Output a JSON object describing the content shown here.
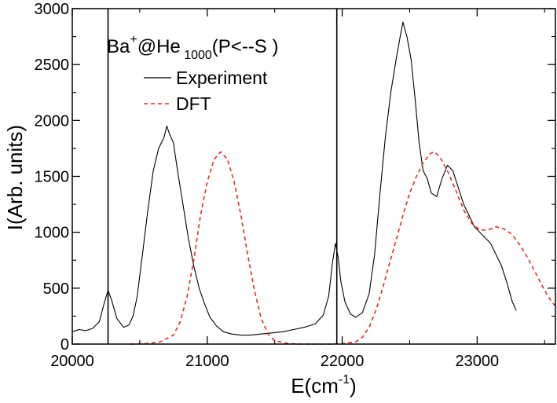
{
  "chart_data": {
    "type": "line",
    "title": "",
    "xlabel_base": "E(cm",
    "xlabel_sup": "-1",
    "xlabel_end": ")",
    "ylabel": "I(Arb. units)",
    "xlim": [
      20000,
      23580
    ],
    "ylim": [
      0,
      3000
    ],
    "x_ticks": [
      20000,
      21000,
      22000,
      23000
    ],
    "y_ticks": [
      0,
      500,
      1000,
      1500,
      2000,
      2500,
      3000
    ],
    "legend": {
      "placement": "top-left",
      "title_parts": {
        "base1": "Ba",
        "sup1": "+",
        "mid": "@He",
        "sub": " 1000",
        "end": "(P<--S )"
      },
      "entries": [
        "Experiment",
        "DFT"
      ]
    },
    "vertical_lines": [
      20265,
      21960
    ],
    "series": [
      {
        "name": "Experiment",
        "color": "#000000",
        "style": "solid",
        "points": [
          [
            20000,
            110
          ],
          [
            20050,
            130
          ],
          [
            20100,
            120
          ],
          [
            20150,
            140
          ],
          [
            20200,
            200
          ],
          [
            20240,
            380
          ],
          [
            20265,
            480
          ],
          [
            20290,
            400
          ],
          [
            20330,
            230
          ],
          [
            20380,
            150
          ],
          [
            20420,
            170
          ],
          [
            20450,
            250
          ],
          [
            20480,
            420
          ],
          [
            20520,
            800
          ],
          [
            20560,
            1200
          ],
          [
            20600,
            1550
          ],
          [
            20640,
            1750
          ],
          [
            20680,
            1850
          ],
          [
            20700,
            1950
          ],
          [
            20720,
            1880
          ],
          [
            20750,
            1800
          ],
          [
            20780,
            1550
          ],
          [
            20820,
            1250
          ],
          [
            20860,
            950
          ],
          [
            20900,
            700
          ],
          [
            20940,
            500
          ],
          [
            20980,
            360
          ],
          [
            21020,
            240
          ],
          [
            21070,
            160
          ],
          [
            21120,
            110
          ],
          [
            21180,
            90
          ],
          [
            21250,
            80
          ],
          [
            21320,
            80
          ],
          [
            21400,
            90
          ],
          [
            21480,
            100
          ],
          [
            21560,
            110
          ],
          [
            21640,
            130
          ],
          [
            21720,
            150
          ],
          [
            21800,
            180
          ],
          [
            21860,
            260
          ],
          [
            21900,
            430
          ],
          [
            21930,
            750
          ],
          [
            21950,
            900
          ],
          [
            21970,
            780
          ],
          [
            21990,
            560
          ],
          [
            22020,
            380
          ],
          [
            22060,
            270
          ],
          [
            22100,
            240
          ],
          [
            22150,
            280
          ],
          [
            22200,
            450
          ],
          [
            22240,
            800
          ],
          [
            22280,
            1350
          ],
          [
            22320,
            1850
          ],
          [
            22360,
            2250
          ],
          [
            22400,
            2550
          ],
          [
            22430,
            2750
          ],
          [
            22450,
            2880
          ],
          [
            22480,
            2750
          ],
          [
            22510,
            2550
          ],
          [
            22540,
            2200
          ],
          [
            22570,
            1800
          ],
          [
            22600,
            1550
          ],
          [
            22630,
            1480
          ],
          [
            22660,
            1350
          ],
          [
            22700,
            1320
          ],
          [
            22740,
            1480
          ],
          [
            22780,
            1600
          ],
          [
            22820,
            1550
          ],
          [
            22860,
            1400
          ],
          [
            22900,
            1250
          ],
          [
            22940,
            1150
          ],
          [
            22980,
            1050
          ],
          [
            23020,
            1000
          ],
          [
            23060,
            950
          ],
          [
            23100,
            900
          ],
          [
            23140,
            800
          ],
          [
            23180,
            700
          ],
          [
            23220,
            550
          ],
          [
            23260,
            380
          ],
          [
            23290,
            300
          ]
        ]
      },
      {
        "name": "DFT",
        "color": "#e8281e",
        "style": "dashed",
        "points": [
          [
            20430,
            0
          ],
          [
            20550,
            5
          ],
          [
            20650,
            20
          ],
          [
            20750,
            80
          ],
          [
            20800,
            200
          ],
          [
            20850,
            420
          ],
          [
            20900,
            750
          ],
          [
            20950,
            1150
          ],
          [
            21000,
            1450
          ],
          [
            21050,
            1650
          ],
          [
            21100,
            1720
          ],
          [
            21150,
            1650
          ],
          [
            21200,
            1450
          ],
          [
            21250,
            1150
          ],
          [
            21300,
            800
          ],
          [
            21350,
            480
          ],
          [
            21400,
            230
          ],
          [
            21450,
            90
          ],
          [
            21500,
            30
          ],
          [
            21600,
            5
          ],
          [
            21700,
            0
          ],
          [
            21900,
            0
          ],
          [
            22000,
            5
          ],
          [
            22100,
            20
          ],
          [
            22150,
            60
          ],
          [
            22200,
            150
          ],
          [
            22250,
            300
          ],
          [
            22300,
            500
          ],
          [
            22350,
            720
          ],
          [
            22400,
            930
          ],
          [
            22450,
            1150
          ],
          [
            22500,
            1350
          ],
          [
            22550,
            1500
          ],
          [
            22600,
            1620
          ],
          [
            22650,
            1700
          ],
          [
            22680,
            1720
          ],
          [
            22720,
            1680
          ],
          [
            22780,
            1550
          ],
          [
            22840,
            1380
          ],
          [
            22900,
            1200
          ],
          [
            22960,
            1080
          ],
          [
            23020,
            1020
          ],
          [
            23080,
            1020
          ],
          [
            23140,
            1050
          ],
          [
            23200,
            1030
          ],
          [
            23260,
            980
          ],
          [
            23320,
            880
          ],
          [
            23380,
            760
          ],
          [
            23440,
            620
          ],
          [
            23500,
            480
          ],
          [
            23550,
            380
          ],
          [
            23580,
            340
          ]
        ]
      }
    ]
  }
}
